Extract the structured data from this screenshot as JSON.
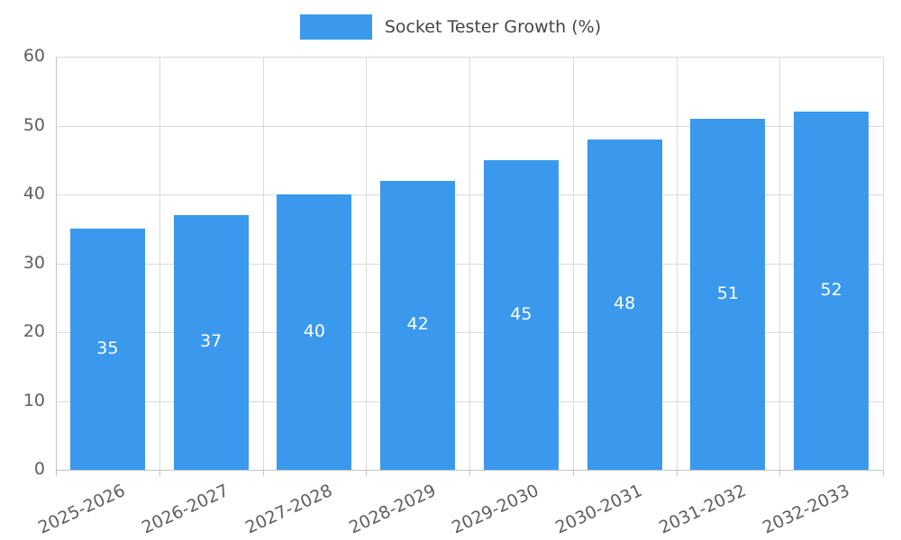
{
  "chart_data": {
    "type": "bar",
    "title": "",
    "legend": {
      "label": "Socket Tester Growth (%)",
      "position": "top"
    },
    "categories": [
      "2025-2026",
      "2026-2027",
      "2027-2028",
      "2028-2029",
      "2029-2030",
      "2030-2031",
      "2031-2032",
      "2032-2033"
    ],
    "values": [
      35,
      37,
      40,
      42,
      45,
      48,
      51,
      52
    ],
    "xlabel": "",
    "ylabel": "",
    "ylim": [
      0,
      60
    ],
    "ytick_step": 10,
    "ytick_labels": [
      "0",
      "10",
      "20",
      "30",
      "40",
      "50",
      "60"
    ],
    "grid": true,
    "bar_color": "#3a99ec",
    "value_label_color": "#ffffff",
    "axis_text_color": "#5f5f5f",
    "gridline_color": "#dadada"
  }
}
